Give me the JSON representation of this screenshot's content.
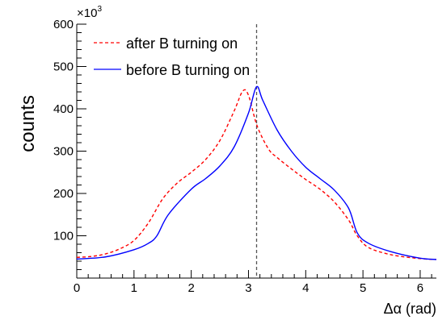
{
  "chart_data": {
    "type": "line",
    "xlabel": "Δα (rad)",
    "ylabel": "counts",
    "y_multiplier": "×10",
    "y_multiplier_exp": "3",
    "xlim": [
      0,
      6.283
    ],
    "ylim": [
      0,
      600
    ],
    "x_ticks": [
      "0",
      "1",
      "2",
      "3",
      "4",
      "5",
      "6"
    ],
    "y_ticks": [
      "100",
      "200",
      "300",
      "400",
      "500",
      "600"
    ],
    "grid": false,
    "legend_position": "top-left",
    "reference_line": {
      "x": 3.1416,
      "style": "dashed",
      "color": "#555555"
    },
    "series": [
      {
        "name": "after B turning on",
        "color": "#ff0000",
        "style": "dashed",
        "x": [
          0,
          0.25,
          0.5,
          0.75,
          1.0,
          1.25,
          1.5,
          1.75,
          2.0,
          2.25,
          2.5,
          2.75,
          2.9,
          3.0,
          3.15,
          3.35,
          3.5,
          3.75,
          4.0,
          4.25,
          4.5,
          4.75,
          4.9,
          5.1,
          5.5,
          6.0,
          6.283
        ],
        "values": [
          49,
          51,
          57,
          69,
          89,
          130,
          187,
          224,
          250,
          280,
          325,
          395,
          442,
          432,
          360,
          305,
          285,
          258,
          233,
          210,
          180,
          137,
          100,
          72,
          55,
          46,
          44
        ]
      },
      {
        "name": "before B turning on",
        "color": "#0000ff",
        "style": "solid",
        "x": [
          0,
          0.5,
          1.0,
          1.25,
          1.4,
          1.6,
          2.0,
          2.25,
          2.5,
          2.75,
          3.0,
          3.14,
          3.25,
          3.5,
          3.75,
          4.0,
          4.25,
          4.5,
          4.75,
          4.9,
          5.1,
          5.5,
          6.0,
          6.283
        ],
        "values": [
          45,
          50,
          67,
          82,
          100,
          150,
          210,
          235,
          265,
          310,
          390,
          452,
          420,
          350,
          300,
          262,
          235,
          208,
          165,
          107,
          82,
          62,
          47,
          44
        ]
      }
    ]
  }
}
